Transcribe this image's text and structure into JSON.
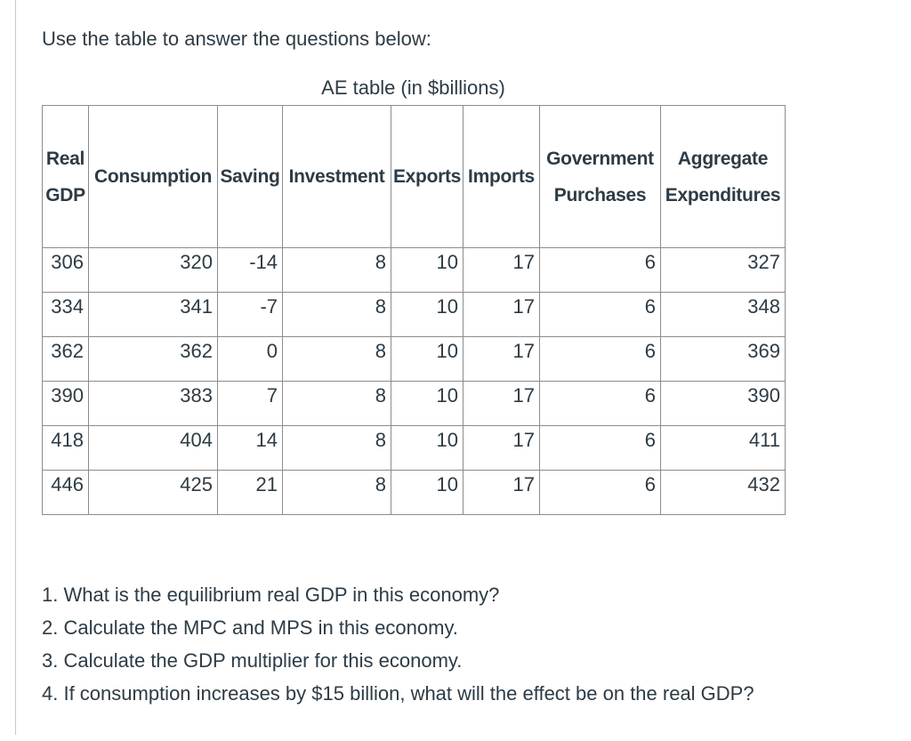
{
  "page": {
    "intro": "Use the table to answer the questions below:",
    "table_title": "AE table (in $billions)"
  },
  "table": {
    "columns": [
      "Real\nGDP",
      "Consumption",
      "Saving",
      "Investment",
      "Exports",
      "Imports",
      "Government\nPurchases",
      "Aggregate\nExpenditures"
    ],
    "rows": [
      [
        "306",
        "320",
        "-14",
        "8",
        "10",
        "17",
        "6",
        "327"
      ],
      [
        "334",
        "341",
        "-7",
        "8",
        "10",
        "17",
        "6",
        "348"
      ],
      [
        "362",
        "362",
        "0",
        "8",
        "10",
        "17",
        "6",
        "369"
      ],
      [
        "390",
        "383",
        "7",
        "8",
        "10",
        "17",
        "6",
        "390"
      ],
      [
        "418",
        "404",
        "14",
        "8",
        "10",
        "17",
        "6",
        "411"
      ],
      [
        "446",
        "425",
        "21",
        "8",
        "10",
        "17",
        "6",
        "432"
      ]
    ]
  },
  "questions": [
    "1. What is the equilibrium real GDP in this economy?",
    "2. Calculate the MPC and MPS in this economy.",
    "3. Calculate the GDP multiplier for this economy.",
    "4. If consumption increases by $15 billion, what will the effect be on the real GDP?"
  ],
  "colors": {
    "text": "#2d3b45",
    "table_border": "#8c8c8c",
    "page_rule": "#c9c9c9"
  }
}
